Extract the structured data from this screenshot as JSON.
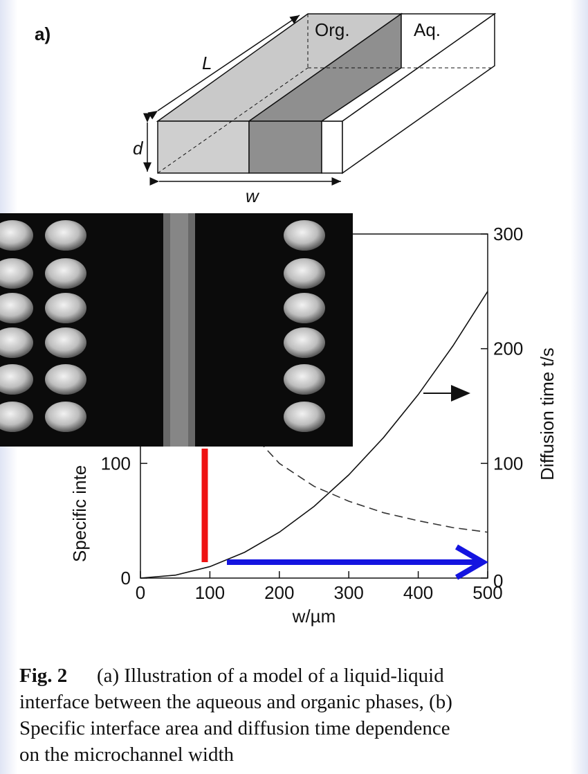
{
  "figure_label": "a)",
  "diagram": {
    "labels": {
      "org": "Org.",
      "aq": "Aq.",
      "length": "L",
      "depth": "d",
      "width": "w"
    }
  },
  "chart_data": {
    "type": "line",
    "x": [
      0,
      50,
      100,
      150,
      200,
      250,
      300,
      350,
      400,
      450,
      500
    ],
    "series": [
      {
        "color": "#111111",
        "style": "solid",
        "axis": "y2",
        "values": [
          0,
          2.5,
          10,
          22.5,
          40,
          62.5,
          90,
          122.5,
          160,
          202.5,
          250
        ]
      },
      {
        "color": "#333333",
        "style": "dashed",
        "values": [
          null,
          null,
          200,
          133,
          100,
          80,
          67,
          57,
          50,
          44,
          40
        ]
      }
    ],
    "xlabel": "w/µm",
    "ylabel": "Specific inte",
    "y2label": "Diffusion time t/s",
    "xlim": [
      0,
      500
    ],
    "xticks": [
      0,
      100,
      200,
      300,
      400,
      500
    ],
    "ylim": [
      0,
      300
    ],
    "yticks": [
      0,
      100
    ],
    "y2lim": [
      0,
      300
    ],
    "y2ticks": [
      0,
      100,
      200,
      300
    ]
  },
  "caption": {
    "label": "Fig. 2",
    "lines": [
      "(a) Illustration of a model of a liquid-liquid",
      "interface between the aqueous and organic phases, (b)",
      "Specific interface area and diffusion time dependence",
      "on the microchannel width"
    ]
  }
}
